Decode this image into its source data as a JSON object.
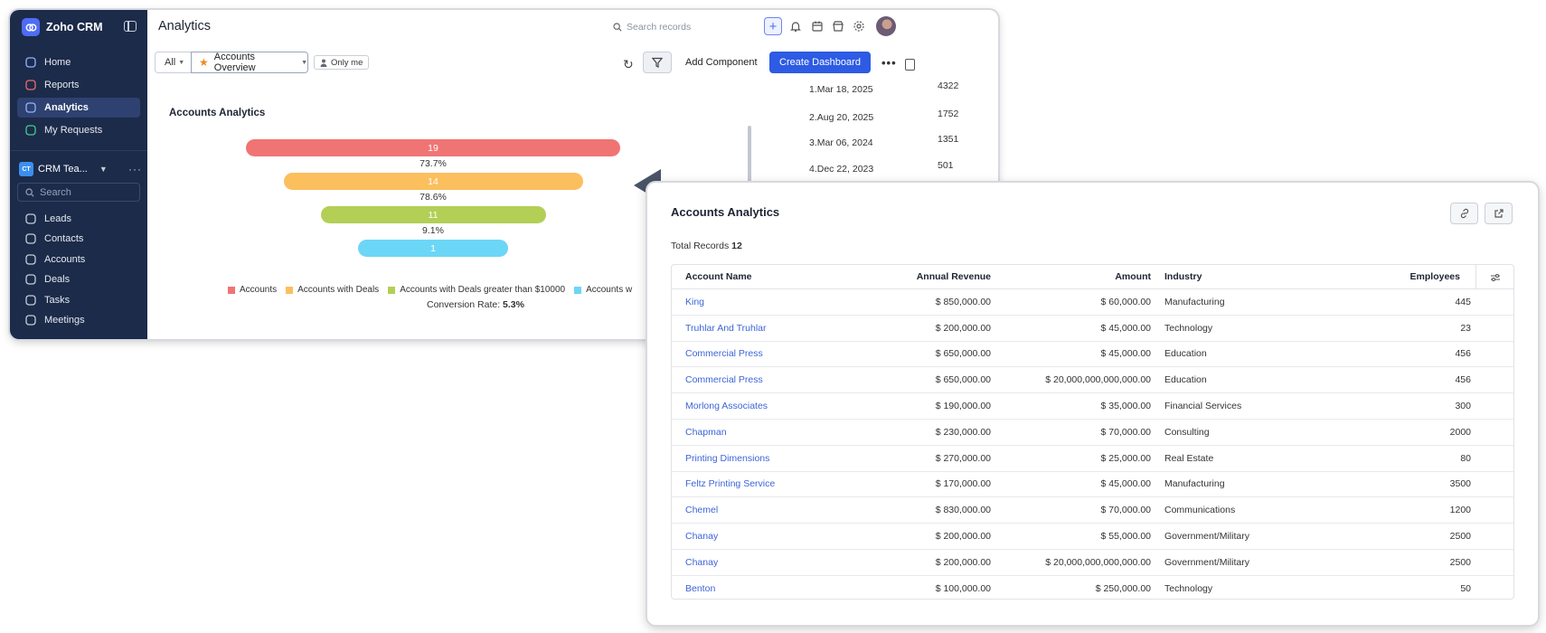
{
  "app": {
    "name": "Zoho CRM",
    "sidebar_primary": [
      {
        "label": "Home",
        "icon": "home-icon"
      },
      {
        "label": "Reports",
        "icon": "reports-icon"
      },
      {
        "label": "Analytics",
        "icon": "analytics-icon",
        "active": true
      },
      {
        "label": "My Requests",
        "icon": "requests-icon"
      }
    ],
    "team": {
      "badge": "CT",
      "name": "CRM Tea..."
    },
    "sidebar_search_placeholder": "Search",
    "sidebar_modules": [
      {
        "label": "Leads",
        "icon": "leads-icon"
      },
      {
        "label": "Contacts",
        "icon": "contacts-icon"
      },
      {
        "label": "Accounts",
        "icon": "accounts-icon"
      },
      {
        "label": "Deals",
        "icon": "deals-icon"
      },
      {
        "label": "Tasks",
        "icon": "tasks-icon"
      },
      {
        "label": "Meetings",
        "icon": "meetings-icon"
      }
    ]
  },
  "header": {
    "title": "Analytics",
    "search_placeholder": "Search records"
  },
  "toolbar": {
    "filter_all": "All",
    "dashboard_name": "Accounts Overview",
    "only_me": "Only me",
    "add_component": "Add Component",
    "create_dashboard": "Create Dashboard"
  },
  "widget": {
    "title": "Accounts Analytics",
    "conversion_label": "Conversion Rate:",
    "conversion_value": "5.3%"
  },
  "chart_data": {
    "type": "funnel",
    "title": "Accounts Analytics",
    "stages": [
      {
        "name": "Accounts",
        "value": 19,
        "color": "#f07474"
      },
      {
        "name": "Accounts with Deals",
        "value": 14,
        "color": "#fbbf5e"
      },
      {
        "name": "Accounts with Deals greater than $10000",
        "value": 11,
        "color": "#b3cf56"
      },
      {
        "name": "Accounts w",
        "value": 1,
        "color": "#6cd6f7"
      }
    ],
    "stage_conversion": [
      "73.7%",
      "78.6%",
      "9.1%"
    ],
    "conversion_rate": "5.3%"
  },
  "side_list": [
    {
      "label": "1.Mar 18, 2025",
      "count": "4322"
    },
    {
      "label": "2.Aug 20, 2025",
      "count": "1752"
    },
    {
      "label": "3.Mar 06, 2024",
      "count": "1351"
    },
    {
      "label": "4.Dec 22, 2023",
      "count": "501"
    }
  ],
  "popup": {
    "title": "Accounts Analytics",
    "total_label": "Total Records",
    "total_value": "12",
    "columns": [
      "Account Name",
      "Annual Revenue",
      "Amount",
      "Industry",
      "Employees"
    ],
    "rows": [
      [
        "King",
        "$ 850,000.00",
        "$ 60,000.00",
        "Manufacturing",
        "445"
      ],
      [
        "Truhlar And Truhlar",
        "$ 200,000.00",
        "$ 45,000.00",
        "Technology",
        "23"
      ],
      [
        "Commercial Press",
        "$ 650,000.00",
        "$ 45,000.00",
        "Education",
        "456"
      ],
      [
        "Commercial Press",
        "$ 650,000.00",
        "$ 20,000,000,000,000.00",
        "Education",
        "456"
      ],
      [
        "Morlong Associates",
        "$ 190,000.00",
        "$ 35,000.00",
        "Financial Services",
        "300"
      ],
      [
        "Chapman",
        "$ 230,000.00",
        "$ 70,000.00",
        "Consulting",
        "2000"
      ],
      [
        "Printing Dimensions",
        "$ 270,000.00",
        "$ 25,000.00",
        "Real Estate",
        "80"
      ],
      [
        "Feltz Printing Service",
        "$ 170,000.00",
        "$ 45,000.00",
        "Manufacturing",
        "3500"
      ],
      [
        "Chemel",
        "$ 830,000.00",
        "$ 70,000.00",
        "Communications",
        "1200"
      ],
      [
        "Chanay",
        "$ 200,000.00",
        "$ 55,000.00",
        "Government/Military",
        "2500"
      ],
      [
        "Chanay",
        "$ 200,000.00",
        "$ 20,000,000,000,000.00",
        "Government/Military",
        "2500"
      ],
      [
        "Benton",
        "$ 100,000.00",
        "$ 250,000.00",
        "Technology",
        "50"
      ]
    ]
  }
}
